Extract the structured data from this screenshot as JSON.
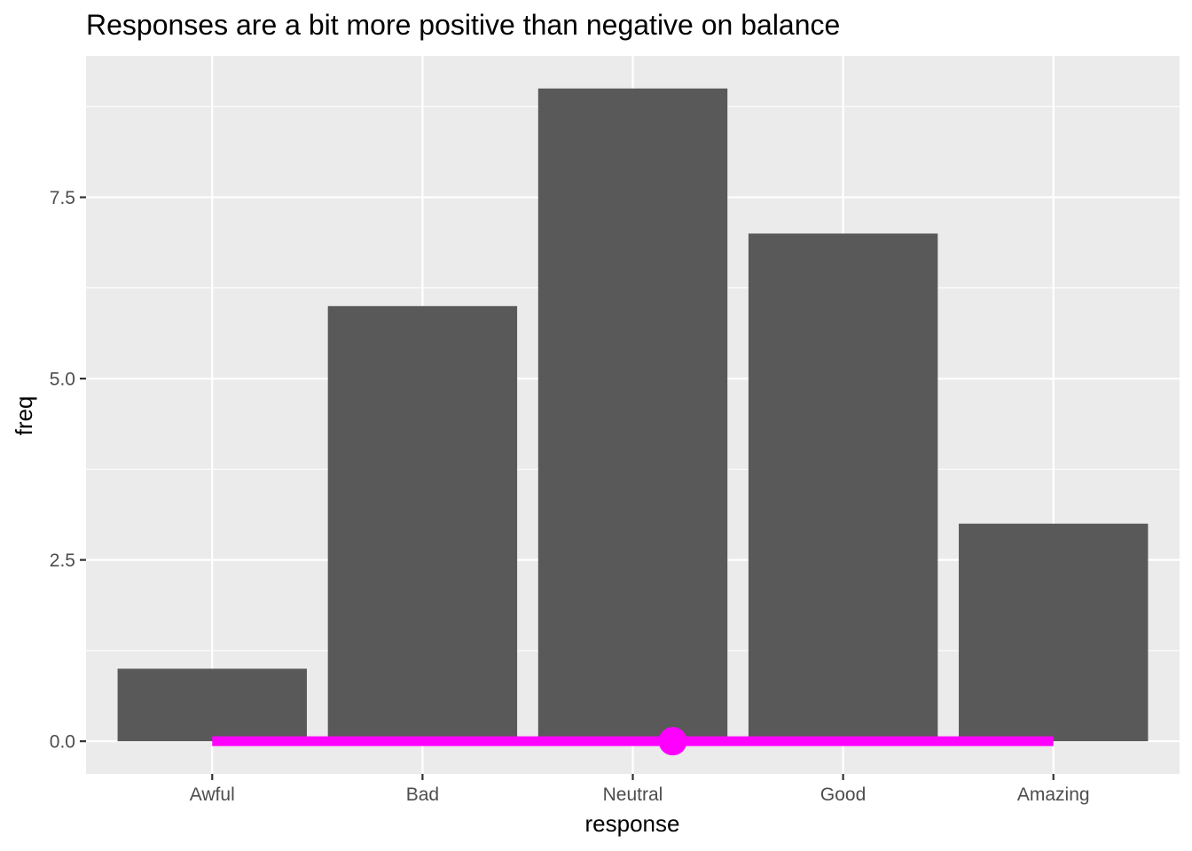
{
  "chart_data": {
    "type": "bar",
    "title": "Responses are a bit more positive than negative on balance",
    "xlabel": "response",
    "ylabel": "freq",
    "categories": [
      "Awful",
      "Bad",
      "Neutral",
      "Good",
      "Amazing"
    ],
    "values": [
      1,
      6,
      9,
      7,
      3
    ],
    "ylim": [
      -0.45,
      9.45
    ],
    "yticks": [
      0,
      2.5,
      5,
      7.5
    ],
    "ytick_labels": [
      "0.0",
      "2.5",
      "5.0",
      "7.5"
    ],
    "grid": true,
    "legend": "none",
    "overlay": {
      "type": "range-with-point",
      "x_start": "Awful",
      "x_end": "Amazing",
      "point_x_position": 3.19,
      "y": 0
    },
    "colors": {
      "bar": "#595959",
      "panel_background": "#ebebeb",
      "grid": "#ffffff",
      "overlay": "#ff00ff"
    }
  }
}
